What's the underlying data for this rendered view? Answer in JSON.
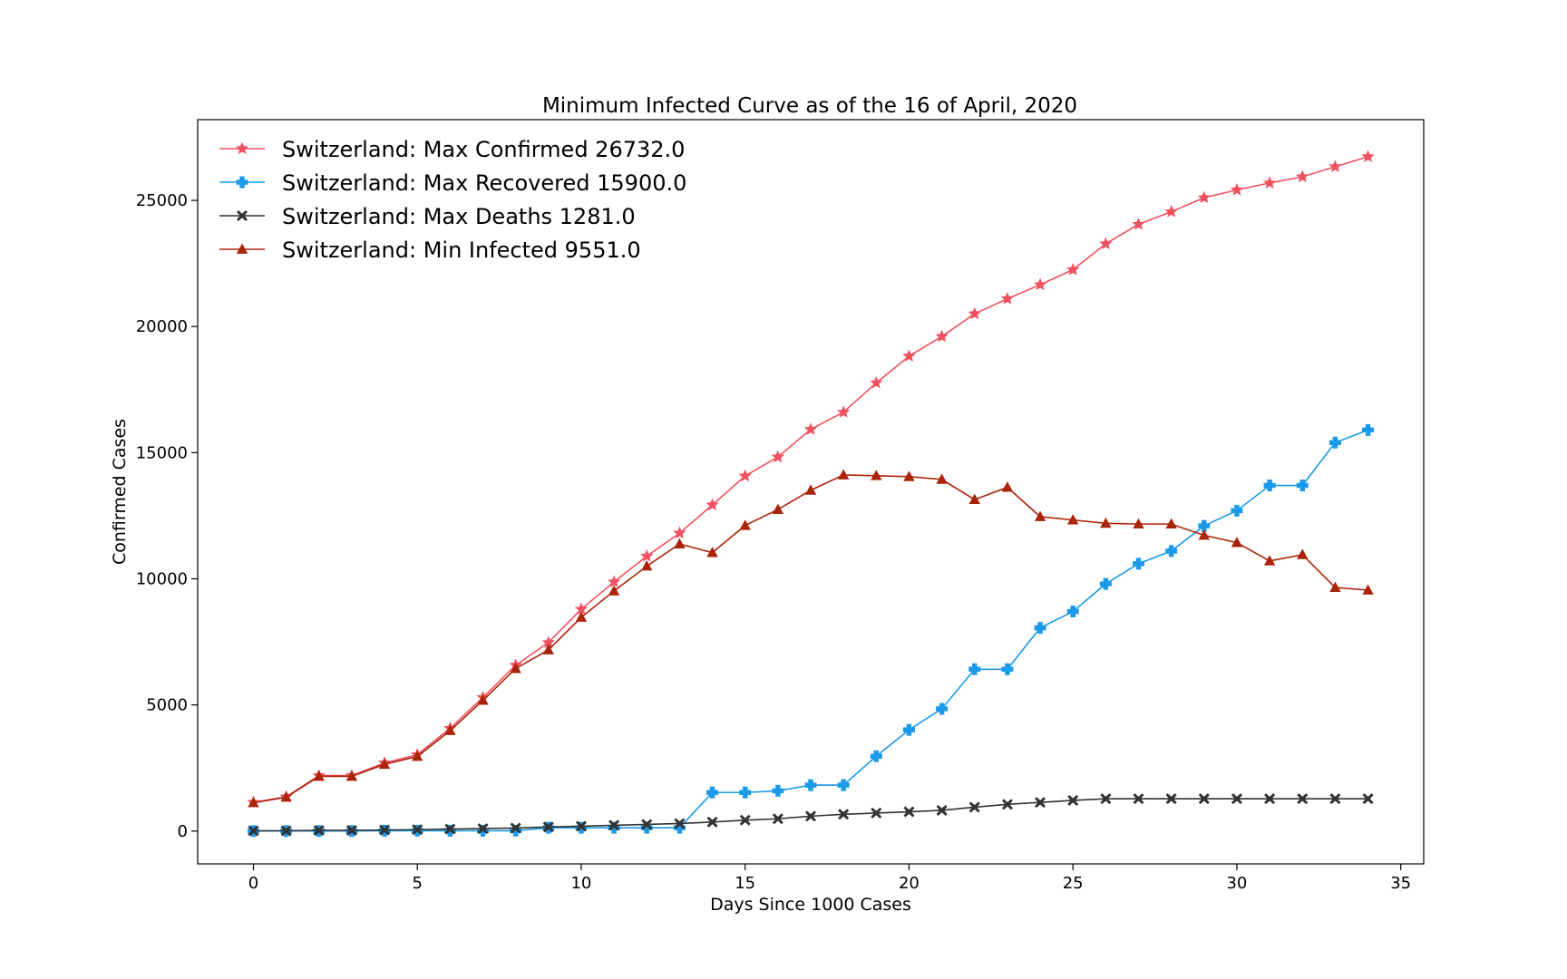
{
  "chart_data": {
    "type": "line",
    "title": "Minimum Infected Curve as of the 16 of April, 2020",
    "xlabel": "Days Since 1000 Cases",
    "ylabel": "Confirmed Cases",
    "xlim": [
      -1.7,
      35.7
    ],
    "ylim": [
      -1300,
      28200
    ],
    "xticks": [
      0,
      5,
      10,
      15,
      20,
      25,
      30,
      35
    ],
    "yticks": [
      0,
      5000,
      10000,
      15000,
      20000,
      25000
    ],
    "grid": false,
    "legend_position": "top-left",
    "x": [
      0,
      1,
      2,
      3,
      4,
      5,
      6,
      7,
      8,
      9,
      10,
      11,
      12,
      13,
      14,
      15,
      16,
      17,
      18,
      19,
      20,
      21,
      22,
      23,
      24,
      25,
      26,
      27,
      28,
      29,
      30,
      31,
      32,
      33,
      34
    ],
    "series": [
      {
        "name": "Switzerland: Max Confirmed 26732.0",
        "color": "#f0505f",
        "marker": "star",
        "values": [
          1139,
          1359,
          2200,
          2200,
          2700,
          3028,
          4075,
          5294,
          6575,
          7474,
          8795,
          9877,
          10897,
          11811,
          12928,
          14076,
          14829,
          15922,
          16605,
          17768,
          18827,
          19606,
          20505,
          21100,
          21657,
          22253,
          23280,
          24051,
          24551,
          25107,
          25415,
          25688,
          25936,
          26336,
          26732
        ]
      },
      {
        "name": "Switzerland: Max Recovered 15900.0",
        "color": "#1a9ae8",
        "marker": "plus",
        "values": [
          4,
          4,
          4,
          4,
          15,
          15,
          15,
          15,
          15,
          131,
          131,
          131,
          131,
          131,
          1530,
          1530,
          1595,
          1823,
          1823,
          2967,
          4013,
          4846,
          6415,
          6415,
          8056,
          8704,
          9800,
          10600,
          11100,
          12100,
          12700,
          13700,
          13700,
          15400,
          15900
        ]
      },
      {
        "name": "Switzerland: Max Deaths 1281.0",
        "color": "#333333",
        "marker": "x",
        "values": [
          11,
          13,
          27,
          28,
          41,
          56,
          80,
          98,
          120,
          161,
          192,
          231,
          264,
          300,
          359,
          433,
          488,
          591,
          666,
          715,
          765,
          821,
          948,
          1059,
          1138,
          1217,
          1281,
          1281,
          1281,
          1281,
          1281,
          1281,
          1281,
          1281,
          1281
        ]
      },
      {
        "name": "Switzerland: Min Infected 9551.0",
        "color": "#ab2308",
        "marker": "triangle",
        "values": [
          1124,
          1342,
          2169,
          2168,
          2644,
          2957,
          3980,
          5181,
          6440,
          7182,
          8472,
          9515,
          10502,
          11380,
          11039,
          12113,
          12746,
          13508,
          14116,
          14086,
          14049,
          13939,
          13142,
          13626,
          12463,
          12332,
          12199,
          12170,
          12170,
          11726,
          11434,
          10707,
          10955,
          9655,
          9551
        ]
      }
    ]
  }
}
